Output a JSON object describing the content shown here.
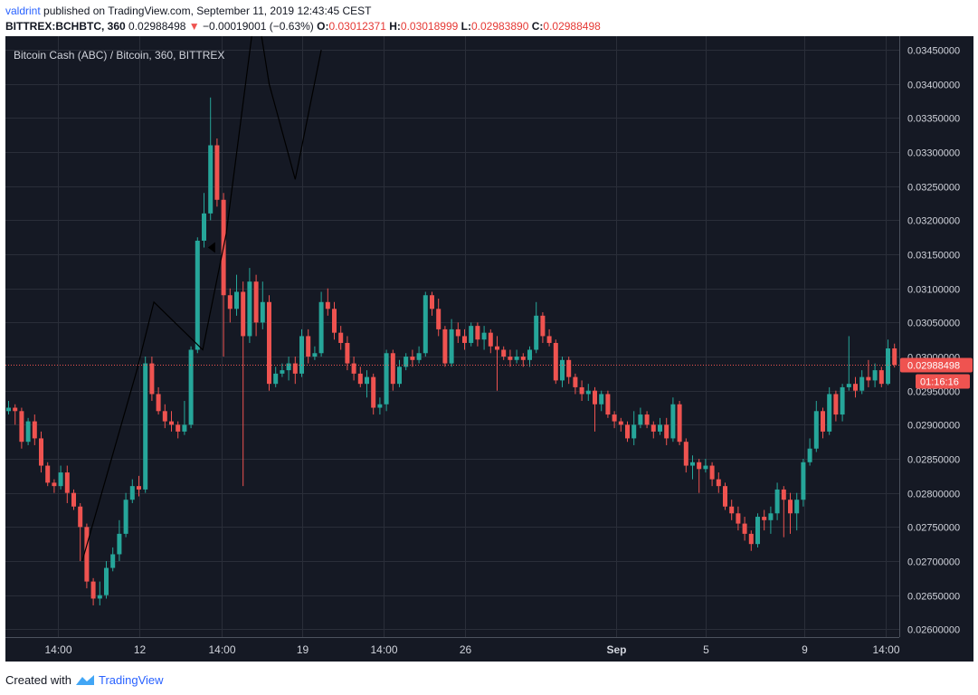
{
  "header": {
    "author": "valdrint",
    "published_text": "published on TradingView.com, September 11, 2019 12:43:45 CEST",
    "symbol": "BITTREX:BCHBTC, 360",
    "last_price": "0.02988498",
    "arrow": "▼",
    "change": "−0.00019001 (−0.63%)",
    "o_label": "O:",
    "o_value": "0.03012371",
    "h_label": "H:",
    "h_value": "0.03018999",
    "l_label": "L:",
    "l_value": "0.02983890",
    "c_label": "C:",
    "c_value": "0.02988498"
  },
  "footer": {
    "created_with": "Created with",
    "brand": "TradingView"
  },
  "colors": {
    "background": "#151924",
    "grid": "#2a2e39",
    "axis_text": "#d1d4dc",
    "up": "#26a69a",
    "down": "#ef5350",
    "price_line": "#ef5350"
  },
  "chart_data": {
    "type": "candlestick",
    "title": "Bitcoin Cash (ABC) / Bitcoin, 360, BITTREX",
    "y_ticks": [
      "0.03450000",
      "0.03400000",
      "0.03350000",
      "0.03300000",
      "0.03250000",
      "0.03200000",
      "0.03150000",
      "0.03100000",
      "0.03050000",
      "0.03000000",
      "0.02950000",
      "0.02900000",
      "0.02850000",
      "0.02800000",
      "0.02750000",
      "0.02700000",
      "0.02650000",
      "0.02600000"
    ],
    "x_ticks": [
      "14:00",
      "12",
      "14:00",
      "19",
      "14:00",
      "26",
      "Sep",
      "5",
      "9",
      "14:00"
    ],
    "x_tick_bold": [
      "Sep"
    ],
    "last_price_label": "0.02988498",
    "countdown_label": "01:16:16",
    "last_price": 0.02988498,
    "candles": [
      [
        0.0292,
        0.02925,
        0.02935,
        0.02915
      ],
      [
        0.02925,
        0.0292,
        0.0293,
        0.029
      ],
      [
        0.0292,
        0.02875,
        0.02925,
        0.02865
      ],
      [
        0.02875,
        0.02905,
        0.0291,
        0.0287
      ],
      [
        0.02905,
        0.0288,
        0.02915,
        0.0287
      ],
      [
        0.0288,
        0.0284,
        0.0289,
        0.0283
      ],
      [
        0.0284,
        0.02815,
        0.02845,
        0.0281
      ],
      [
        0.02815,
        0.0281,
        0.0282,
        0.028
      ],
      [
        0.0281,
        0.0283,
        0.0284,
        0.02805
      ],
      [
        0.0283,
        0.028,
        0.0284,
        0.02785
      ],
      [
        0.028,
        0.0278,
        0.02805,
        0.02775
      ],
      [
        0.0278,
        0.0275,
        0.02785,
        0.027
      ],
      [
        0.0275,
        0.0267,
        0.02755,
        0.0266
      ],
      [
        0.0267,
        0.02645,
        0.02675,
        0.02635
      ],
      [
        0.02645,
        0.0265,
        0.0267,
        0.02635
      ],
      [
        0.0265,
        0.0269,
        0.027,
        0.02645
      ],
      [
        0.0269,
        0.0271,
        0.0272,
        0.02685
      ],
      [
        0.0271,
        0.0274,
        0.0276,
        0.027
      ],
      [
        0.0274,
        0.0279,
        0.028,
        0.02735
      ],
      [
        0.0279,
        0.0281,
        0.0282,
        0.02785
      ],
      [
        0.0281,
        0.02805,
        0.02825,
        0.02795
      ],
      [
        0.02805,
        0.0299,
        0.03,
        0.028
      ],
      [
        0.0299,
        0.02945,
        0.03,
        0.02935
      ],
      [
        0.02945,
        0.0292,
        0.02955,
        0.02915
      ],
      [
        0.0292,
        0.02905,
        0.0293,
        0.02895
      ],
      [
        0.02905,
        0.029,
        0.0292,
        0.0289
      ],
      [
        0.029,
        0.0289,
        0.02905,
        0.0288
      ],
      [
        0.0289,
        0.029,
        0.02935,
        0.02885
      ],
      [
        0.029,
        0.0301,
        0.03015,
        0.02895
      ],
      [
        0.0301,
        0.0317,
        0.03175,
        0.03005
      ],
      [
        0.0317,
        0.0321,
        0.0324,
        0.0316
      ],
      [
        0.0321,
        0.0331,
        0.0338,
        0.032
      ],
      [
        0.0331,
        0.0323,
        0.0332,
        0.0322
      ],
      [
        0.0323,
        0.0309,
        0.0324,
        0.03
      ],
      [
        0.0309,
        0.0307,
        0.031,
        0.0305
      ],
      [
        0.0307,
        0.03095,
        0.0312,
        0.0306
      ],
      [
        0.03095,
        0.0303,
        0.0311,
        0.0281
      ],
      [
        0.0303,
        0.0311,
        0.0313,
        0.0302
      ],
      [
        0.0311,
        0.0305,
        0.0312,
        0.0303
      ],
      [
        0.0305,
        0.0308,
        0.0311,
        0.0304
      ],
      [
        0.0308,
        0.0296,
        0.0309,
        0.0295
      ],
      [
        0.0296,
        0.02975,
        0.02985,
        0.02955
      ],
      [
        0.02975,
        0.0298,
        0.0299,
        0.0297
      ],
      [
        0.0298,
        0.0299,
        0.03,
        0.02965
      ],
      [
        0.0299,
        0.02975,
        0.03,
        0.0296
      ],
      [
        0.02975,
        0.0303,
        0.0304,
        0.0297
      ],
      [
        0.0303,
        0.03,
        0.0304,
        0.0299
      ],
      [
        0.03,
        0.03005,
        0.03015,
        0.02995
      ],
      [
        0.03005,
        0.0308,
        0.03095,
        0.03
      ],
      [
        0.0308,
        0.0307,
        0.031,
        0.0306
      ],
      [
        0.0307,
        0.03035,
        0.0308,
        0.03025
      ],
      [
        0.03035,
        0.0302,
        0.03045,
        0.0301
      ],
      [
        0.0302,
        0.0299,
        0.0303,
        0.0298
      ],
      [
        0.0299,
        0.02975,
        0.03,
        0.02965
      ],
      [
        0.02975,
        0.0296,
        0.02985,
        0.02955
      ],
      [
        0.0296,
        0.0297,
        0.0298,
        0.0294
      ],
      [
        0.0297,
        0.02925,
        0.02975,
        0.02915
      ],
      [
        0.02925,
        0.0293,
        0.0294,
        0.02915
      ],
      [
        0.0293,
        0.03005,
        0.0301,
        0.0292
      ],
      [
        0.03005,
        0.0296,
        0.0301,
        0.0295
      ],
      [
        0.0296,
        0.02985,
        0.02995,
        0.02955
      ],
      [
        0.02985,
        0.03,
        0.03005,
        0.0298
      ],
      [
        0.03,
        0.02995,
        0.0301,
        0.02985
      ],
      [
        0.02995,
        0.03005,
        0.03015,
        0.0299
      ],
      [
        0.03005,
        0.0309,
        0.03095,
        0.03
      ],
      [
        0.0309,
        0.0307,
        0.03095,
        0.0306
      ],
      [
        0.0307,
        0.0304,
        0.03085,
        0.0303
      ],
      [
        0.0304,
        0.0299,
        0.03045,
        0.02985
      ],
      [
        0.0299,
        0.0304,
        0.03055,
        0.02985
      ],
      [
        0.0304,
        0.0303,
        0.0305,
        0.0302
      ],
      [
        0.0303,
        0.0302,
        0.0304,
        0.0301
      ],
      [
        0.0302,
        0.03045,
        0.0305,
        0.03015
      ],
      [
        0.03045,
        0.03025,
        0.0305,
        0.03015
      ],
      [
        0.03025,
        0.03035,
        0.03045,
        0.0301
      ],
      [
        0.03035,
        0.03015,
        0.0304,
        0.03005
      ],
      [
        0.03015,
        0.0301,
        0.0303,
        0.0295
      ],
      [
        0.0301,
        0.03,
        0.03015,
        0.02995
      ],
      [
        0.03,
        0.02995,
        0.0301,
        0.02985
      ],
      [
        0.02995,
        0.03,
        0.0301,
        0.0299
      ],
      [
        0.03,
        0.02995,
        0.03005,
        0.02985
      ],
      [
        0.02995,
        0.0301,
        0.03015,
        0.02985
      ],
      [
        0.0301,
        0.0306,
        0.0308,
        0.03005
      ],
      [
        0.0306,
        0.0303,
        0.03065,
        0.0302
      ],
      [
        0.0303,
        0.0302,
        0.0304,
        0.03015
      ],
      [
        0.0302,
        0.02965,
        0.03025,
        0.0296
      ],
      [
        0.02965,
        0.02995,
        0.03,
        0.02955
      ],
      [
        0.02995,
        0.0297,
        0.03,
        0.0296
      ],
      [
        0.0297,
        0.02955,
        0.02975,
        0.02945
      ],
      [
        0.02955,
        0.02945,
        0.02965,
        0.02935
      ],
      [
        0.02945,
        0.0295,
        0.0296,
        0.02935
      ],
      [
        0.0295,
        0.0293,
        0.02955,
        0.0289
      ],
      [
        0.0293,
        0.02945,
        0.0295,
        0.0292
      ],
      [
        0.02945,
        0.02915,
        0.0295,
        0.0291
      ],
      [
        0.02915,
        0.02905,
        0.0292,
        0.02895
      ],
      [
        0.02905,
        0.029,
        0.0291,
        0.0289
      ],
      [
        0.029,
        0.0288,
        0.02905,
        0.02875
      ],
      [
        0.0288,
        0.029,
        0.0292,
        0.0287
      ],
      [
        0.029,
        0.02915,
        0.02925,
        0.02895
      ],
      [
        0.02915,
        0.029,
        0.0292,
        0.02895
      ],
      [
        0.029,
        0.0289,
        0.02905,
        0.0288
      ],
      [
        0.0289,
        0.029,
        0.0291,
        0.02885
      ],
      [
        0.029,
        0.0288,
        0.0291,
        0.0287
      ],
      [
        0.0288,
        0.0293,
        0.0294,
        0.02875
      ],
      [
        0.0293,
        0.02875,
        0.02935,
        0.0287
      ],
      [
        0.02875,
        0.0284,
        0.0288,
        0.0283
      ],
      [
        0.0284,
        0.02845,
        0.02855,
        0.0282
      ],
      [
        0.02845,
        0.02835,
        0.0285,
        0.028
      ],
      [
        0.02835,
        0.0284,
        0.0285,
        0.0283
      ],
      [
        0.0284,
        0.0282,
        0.02845,
        0.0281
      ],
      [
        0.0282,
        0.0281,
        0.0283,
        0.028
      ],
      [
        0.0281,
        0.0278,
        0.02815,
        0.02775
      ],
      [
        0.0278,
        0.0277,
        0.0279,
        0.0276
      ],
      [
        0.0277,
        0.02755,
        0.0278,
        0.02745
      ],
      [
        0.02755,
        0.0274,
        0.02765,
        0.0273
      ],
      [
        0.0274,
        0.02725,
        0.02745,
        0.02715
      ],
      [
        0.02725,
        0.02765,
        0.0277,
        0.0272
      ],
      [
        0.02765,
        0.0276,
        0.02775,
        0.02745
      ],
      [
        0.0276,
        0.0277,
        0.0278,
        0.0274
      ],
      [
        0.0277,
        0.02805,
        0.02815,
        0.0276
      ],
      [
        0.02805,
        0.0279,
        0.0281,
        0.02735
      ],
      [
        0.0279,
        0.0277,
        0.028,
        0.0274
      ],
      [
        0.0277,
        0.0279,
        0.028,
        0.02745
      ],
      [
        0.0279,
        0.02845,
        0.0285,
        0.0278
      ],
      [
        0.02845,
        0.02865,
        0.0288,
        0.0284
      ],
      [
        0.02865,
        0.0292,
        0.02935,
        0.0286
      ],
      [
        0.0292,
        0.0289,
        0.02925,
        0.0288
      ],
      [
        0.0289,
        0.02945,
        0.02955,
        0.02885
      ],
      [
        0.02945,
        0.02915,
        0.0295,
        0.02905
      ],
      [
        0.02915,
        0.02955,
        0.0296,
        0.02905
      ],
      [
        0.02955,
        0.0296,
        0.0303,
        0.0295
      ],
      [
        0.0296,
        0.0295,
        0.0297,
        0.0294
      ],
      [
        0.0295,
        0.0297,
        0.0298,
        0.02945
      ],
      [
        0.0297,
        0.02965,
        0.02995,
        0.02955
      ],
      [
        0.02965,
        0.0298,
        0.0299,
        0.02955
      ],
      [
        0.0298,
        0.0296,
        0.02985,
        0.02955
      ],
      [
        0.0296,
        0.03012,
        0.03025,
        0.02958
      ],
      [
        0.03012,
        0.02988,
        0.03019,
        0.02984
      ]
    ],
    "drawing_path": [
      [
        0.0268,
        0.027
      ],
      [
        0.02875,
        0.0298
      ],
      [
        0.0297,
        0.0308
      ],
      [
        0.0312,
        0.0301
      ],
      [
        0.032,
        0.0318
      ],
      [
        0.033,
        0.0352
      ],
      [
        0.0341,
        0.034
      ],
      [
        0.0348,
        0.0326
      ],
      [
        0.0353,
        0.0345
      ]
    ]
  }
}
